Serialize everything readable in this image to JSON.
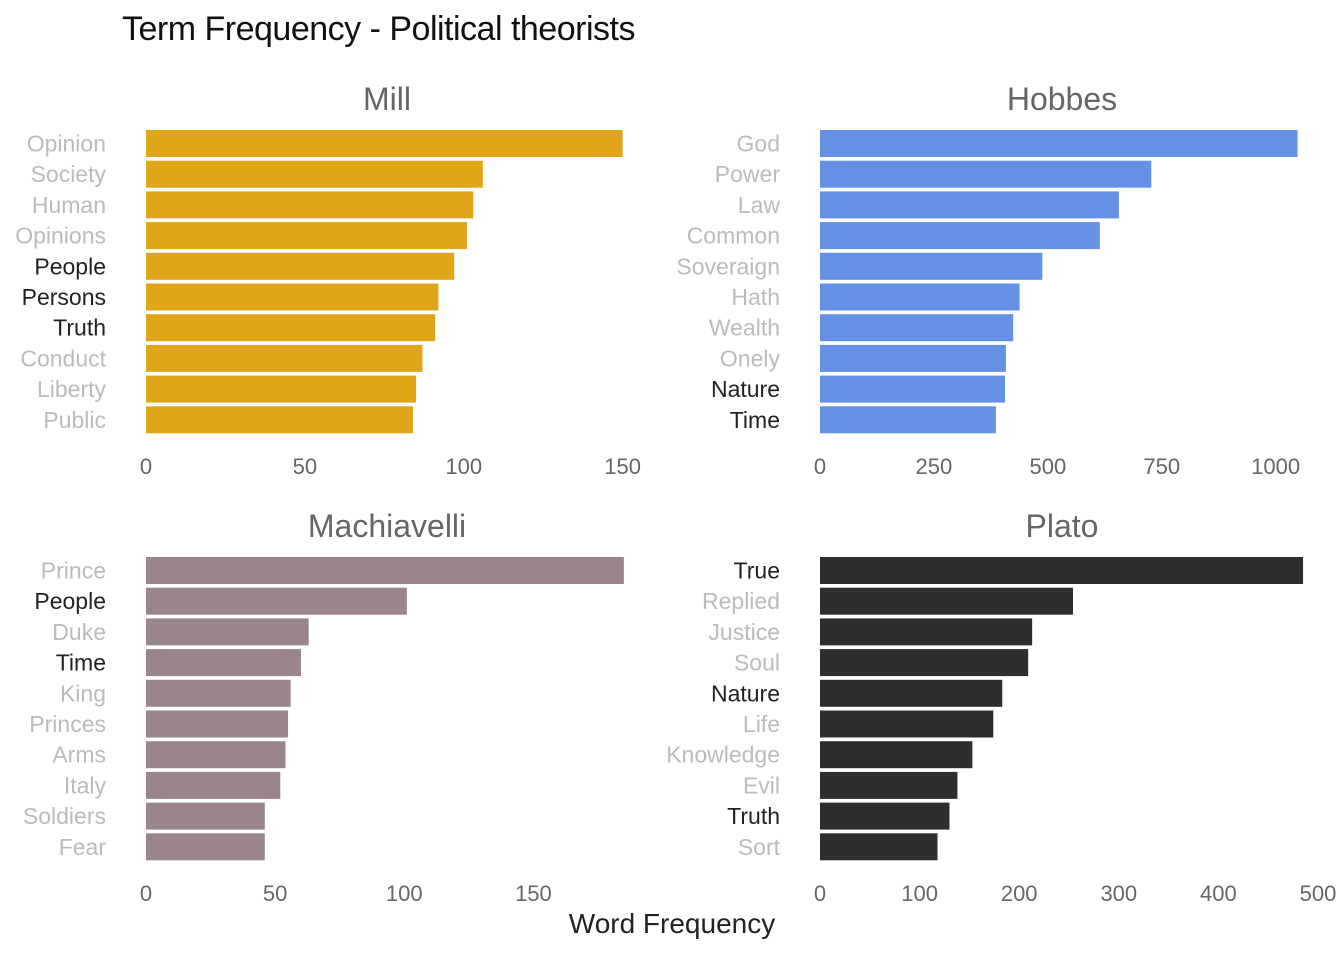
{
  "title": "Term Frequency - Political theorists",
  "xlabel": "Word Frequency",
  "chart_data": [
    {
      "type": "bar",
      "orientation": "horizontal",
      "title": "Mill",
      "color": "#E1A519",
      "categories": [
        "Opinion",
        "Society",
        "Human",
        "Opinions",
        "People",
        "Persons",
        "Truth",
        "Conduct",
        "Liberty",
        "Public"
      ],
      "values": [
        150,
        106,
        103,
        101,
        97,
        92,
        91,
        87,
        85,
        84
      ],
      "highlight": [
        "People",
        "Persons",
        "Truth"
      ],
      "xticks": [
        0,
        50,
        100,
        150
      ],
      "xlim": [
        0,
        152
      ]
    },
    {
      "type": "bar",
      "orientation": "horizontal",
      "title": "Hobbes",
      "color": "#6490E5",
      "categories": [
        "God",
        "Power",
        "Law",
        "Common",
        "Soveraign",
        "Hath",
        "Wealth",
        "Onely",
        "Nature",
        "Time"
      ],
      "values": [
        1048,
        727,
        656,
        614,
        488,
        438,
        424,
        408,
        406,
        386
      ],
      "highlight": [
        "Nature",
        "Time"
      ],
      "xticks": [
        0,
        250,
        500,
        750,
        1000
      ],
      "xlim": [
        0,
        1060
      ]
    },
    {
      "type": "bar",
      "orientation": "horizontal",
      "title": "Machiavelli",
      "color": "#9A858E",
      "categories": [
        "Prince",
        "People",
        "Duke",
        "Time",
        "King",
        "Princes",
        "Arms",
        "Italy",
        "Soldiers",
        "Fear"
      ],
      "values": [
        185,
        101,
        63,
        60,
        56,
        55,
        54,
        52,
        46,
        46
      ],
      "highlight": [
        "People",
        "Time"
      ],
      "xticks": [
        0,
        50,
        100,
        150
      ],
      "xlim": [
        0,
        187
      ]
    },
    {
      "type": "bar",
      "orientation": "horizontal",
      "title": "Plato",
      "color": "#2D2E2E",
      "categories": [
        "True",
        "Replied",
        "Justice",
        "Soul",
        "Nature",
        "Life",
        "Knowledge",
        "Evil",
        "Truth",
        "Sort"
      ],
      "values": [
        485,
        254,
        213,
        209,
        183,
        174,
        153,
        138,
        130,
        118
      ],
      "highlight": [
        "True",
        "Nature",
        "Truth"
      ],
      "xticks": [
        0,
        100,
        200,
        300,
        400,
        500
      ],
      "xlim": [
        0,
        500
      ]
    }
  ],
  "colors": {
    "highlight_label": "#222222",
    "muted_label": "#BBBBBB"
  }
}
